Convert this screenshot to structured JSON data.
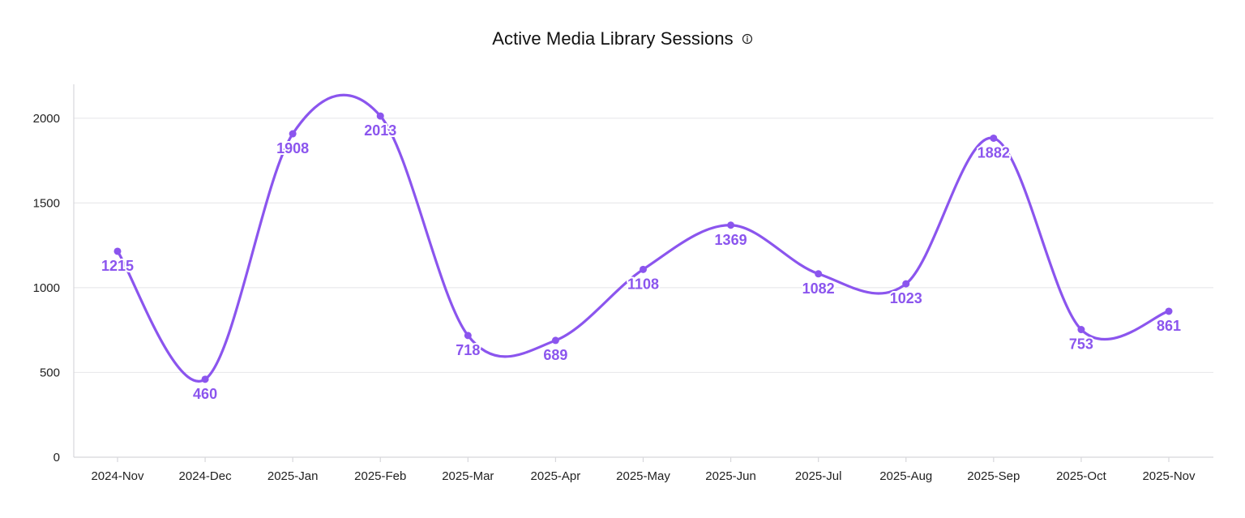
{
  "colors": {
    "series": "#8b55ee",
    "grid": "#e9e9ec",
    "axis": "#d7d7db"
  },
  "icons": {
    "title_info": "info-circle-icon"
  },
  "chart_data": {
    "type": "line",
    "title": "Active Media Library Sessions",
    "xlabel": "",
    "ylabel": "",
    "categories": [
      "2024-Nov",
      "2024-Dec",
      "2025-Jan",
      "2025-Feb",
      "2025-Mar",
      "2025-Apr",
      "2025-May",
      "2025-Jun",
      "2025-Jul",
      "2025-Aug",
      "2025-Sep",
      "2025-Oct",
      "2025-Nov"
    ],
    "values": [
      1215,
      460,
      1908,
      2013,
      718,
      689,
      1108,
      1369,
      1082,
      1023,
      1882,
      753,
      861
    ],
    "ylim": [
      0,
      2200
    ],
    "yticks": [
      0,
      500,
      1000,
      1500,
      2000
    ],
    "grid": true,
    "curve": "smooth",
    "data_labels": true,
    "legend": "none"
  }
}
